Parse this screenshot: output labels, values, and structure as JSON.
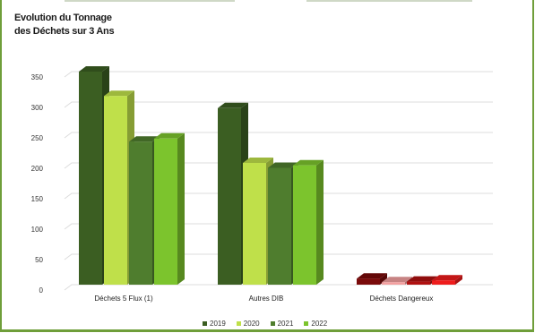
{
  "chart_data": {
    "type": "bar",
    "title": "Evolution du Tonnage\ndes Déchets sur 3 Ans",
    "categories": [
      "Déchets 5 Flux (1)",
      "Autres DIB",
      "Déchets Dangereux"
    ],
    "series": [
      {
        "name": "2019",
        "values": [
          350,
          290,
          10
        ]
      },
      {
        "name": "2020",
        "values": [
          310,
          200,
          4
        ]
      },
      {
        "name": "2021",
        "values": [
          235,
          192,
          5
        ]
      },
      {
        "name": "2022",
        "values": [
          240,
          196,
          7
        ]
      }
    ],
    "ylim": [
      0,
      350
    ],
    "yticks": [
      0,
      50,
      100,
      150,
      200,
      250,
      300,
      350
    ],
    "grid": true,
    "legend_position": "bottom",
    "colors": {
      "normal": [
        "#3b5e22",
        "#bfe04a",
        "#4f7d2e",
        "#7cc42d"
      ],
      "dangerous": [
        "#7a0a0a",
        "#f3a0a0",
        "#b01010",
        "#ee1c1c"
      ]
    }
  }
}
